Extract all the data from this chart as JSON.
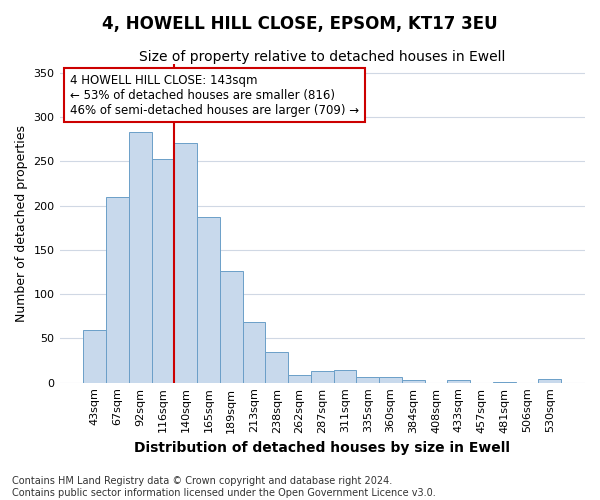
{
  "title1": "4, HOWELL HILL CLOSE, EPSOM, KT17 3EU",
  "title2": "Size of property relative to detached houses in Ewell",
  "xlabel": "Distribution of detached houses by size in Ewell",
  "ylabel": "Number of detached properties",
  "categories": [
    "43sqm",
    "67sqm",
    "92sqm",
    "116sqm",
    "140sqm",
    "165sqm",
    "189sqm",
    "213sqm",
    "238sqm",
    "262sqm",
    "287sqm",
    "311sqm",
    "335sqm",
    "360sqm",
    "384sqm",
    "408sqm",
    "433sqm",
    "457sqm",
    "481sqm",
    "506sqm",
    "530sqm"
  ],
  "values": [
    60,
    210,
    283,
    253,
    271,
    187,
    126,
    69,
    35,
    9,
    13,
    14,
    6,
    6,
    3,
    0,
    3,
    0,
    1,
    0,
    4
  ],
  "bar_color": "#c8d9ec",
  "bar_edge_color": "#6b9fc8",
  "vline_color": "#cc0000",
  "vline_x": 3.5,
  "annotation_line1": "4 HOWELL HILL CLOSE: 143sqm",
  "annotation_line2": "← 53% of detached houses are smaller (816)",
  "annotation_line3": "46% of semi-detached houses are larger (709) →",
  "annotation_box_facecolor": "#ffffff",
  "annotation_box_edgecolor": "#cc0000",
  "ylim": [
    0,
    360
  ],
  "yticks": [
    0,
    50,
    100,
    150,
    200,
    250,
    300,
    350
  ],
  "footnote": "Contains HM Land Registry data © Crown copyright and database right 2024.\nContains public sector information licensed under the Open Government Licence v3.0.",
  "fig_facecolor": "#ffffff",
  "ax_facecolor": "#ffffff",
  "grid_color": "#d0d8e4",
  "title1_fontsize": 12,
  "title2_fontsize": 10,
  "xlabel_fontsize": 10,
  "ylabel_fontsize": 9,
  "tick_fontsize": 8,
  "annot_fontsize": 8.5,
  "footnote_fontsize": 7
}
